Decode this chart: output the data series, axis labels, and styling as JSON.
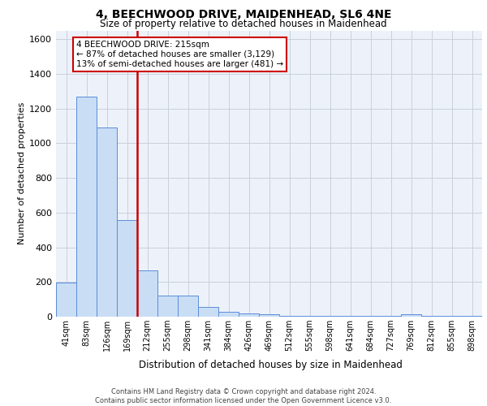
{
  "title_line1": "4, BEECHWOOD DRIVE, MAIDENHEAD, SL6 4NE",
  "title_line2": "Size of property relative to detached houses in Maidenhead",
  "xlabel": "Distribution of detached houses by size in Maidenhead",
  "ylabel": "Number of detached properties",
  "categories": [
    "41sqm",
    "83sqm",
    "126sqm",
    "169sqm",
    "212sqm",
    "255sqm",
    "298sqm",
    "341sqm",
    "384sqm",
    "426sqm",
    "469sqm",
    "512sqm",
    "555sqm",
    "598sqm",
    "641sqm",
    "684sqm",
    "727sqm",
    "769sqm",
    "812sqm",
    "855sqm",
    "898sqm"
  ],
  "values": [
    197,
    1270,
    1090,
    557,
    265,
    122,
    122,
    57,
    30,
    20,
    13,
    5,
    5,
    5,
    5,
    5,
    5,
    13,
    5,
    5,
    5
  ],
  "bar_color": "#c9ddf5",
  "bar_edge_color": "#5b8dd9",
  "vline_index": 4,
  "vline_color": "#cc0000",
  "annotation_text": "4 BEECHWOOD DRIVE: 215sqm\n← 87% of detached houses are smaller (3,129)\n13% of semi-detached houses are larger (481) →",
  "annotation_box_facecolor": "#ffffff",
  "annotation_box_edgecolor": "#cc0000",
  "ylim": [
    0,
    1650
  ],
  "yticks": [
    0,
    200,
    400,
    600,
    800,
    1000,
    1200,
    1400,
    1600
  ],
  "grid_color": "#c8d0dc",
  "background_color": "#edf2fa",
  "footer_line1": "Contains HM Land Registry data © Crown copyright and database right 2024.",
  "footer_line2": "Contains public sector information licensed under the Open Government Licence v3.0."
}
